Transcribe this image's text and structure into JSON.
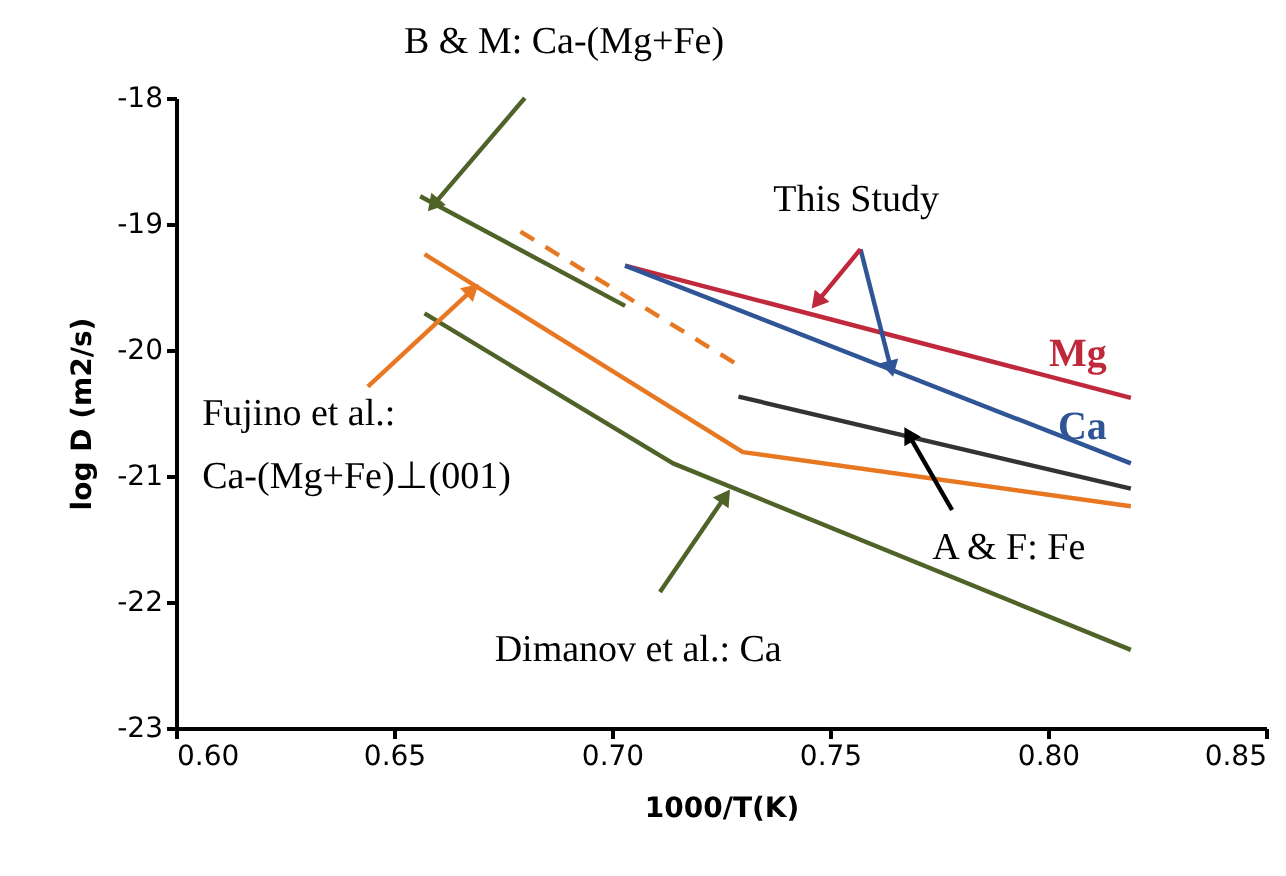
{
  "chart_data": {
    "type": "line",
    "xlabel": "1000/T(K)",
    "ylabel": "log D (m2/s)",
    "xlim": [
      0.6,
      0.85
    ],
    "xticks": [
      {
        "value": 0.6,
        "label": "0.60"
      },
      {
        "value": 0.65,
        "label": "0.65"
      },
      {
        "value": 0.7,
        "label": "0.70"
      },
      {
        "value": 0.75,
        "label": "0.75"
      },
      {
        "value": 0.8,
        "label": "0.80"
      },
      {
        "value": 0.85,
        "label": "0.85"
      }
    ],
    "ylim": [
      -23,
      -18
    ],
    "yticks": [
      -23,
      -22,
      -21,
      -20,
      -19,
      -18
    ],
    "grid": false,
    "marker": "none",
    "series": [
      {
        "name": "Mg",
        "color": "#c0283c",
        "x": [
          0.703,
          0.819
        ],
        "values": [
          -19.33,
          -20.38
        ]
      },
      {
        "name": "Ca",
        "color": "#2f5597",
        "x": [
          0.703,
          0.819
        ],
        "values": [
          -19.33,
          -20.9
        ]
      },
      {
        "color": "#4f6228",
        "x": [
          0.656,
          0.703
        ],
        "values": [
          -18.78,
          -19.65
        ]
      },
      {
        "color": "#e87722",
        "line_style": "dashed",
        "x": [
          0.679,
          0.728
        ],
        "values": [
          -19.06,
          -20.1
        ]
      },
      {
        "color": "#e87722",
        "x": [
          0.657,
          0.73,
          0.819
        ],
        "values": [
          -19.24,
          -20.81,
          -21.24
        ]
      },
      {
        "color": "#4f6228",
        "x": [
          0.657,
          0.714,
          0.819
        ],
        "values": [
          -19.71,
          -20.9,
          -22.38
        ]
      },
      {
        "color": "#333333",
        "x": [
          0.729,
          0.819
        ],
        "values": [
          -20.37,
          -21.1
        ]
      }
    ],
    "annotations": [
      {
        "text": "B & M: Ca-(Mg+Fe)",
        "x": 0.659,
        "y": -18.85
      },
      {
        "text": "This Study",
        "x": 0.764,
        "y": -20.15
      },
      {
        "text": "Fujino et al.:\nCa-(Mg+Fe)⊥(001)",
        "x": 0.668,
        "y": -19.52
      },
      {
        "text": "A & F: Fe",
        "x": 0.768,
        "y": -20.67
      },
      {
        "text": "Dimanov et al.: Ca",
        "x": 0.726,
        "y": -21.16
      }
    ]
  }
}
